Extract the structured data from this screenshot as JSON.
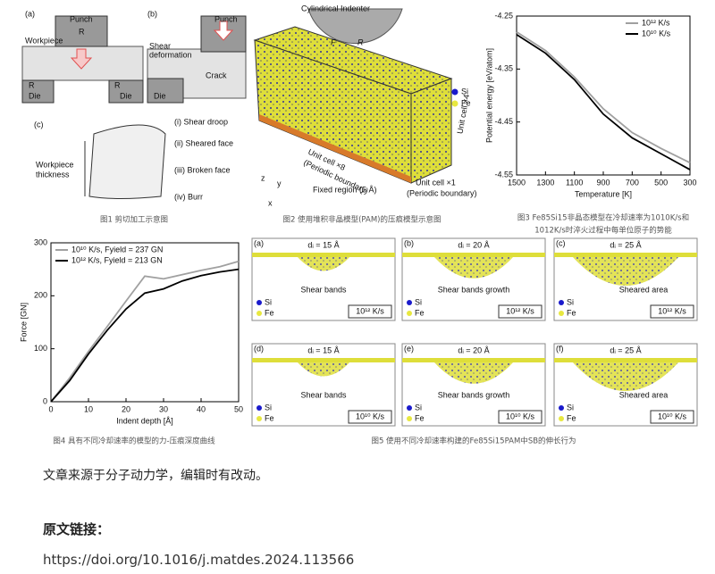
{
  "figure1": {
    "labels_a": [
      "(a)",
      "Punch",
      "R",
      "Workpiece",
      "R",
      "Die",
      "R",
      "Die"
    ],
    "labels_b": [
      "(b)",
      "Punch",
      "Shear",
      "deformation",
      "Crack",
      "Die"
    ],
    "labels_c": [
      "(c)",
      "(i) Shear droop",
      "(ii) Sheared face",
      "(iii) Broken face",
      "(iv) Burr",
      "Workpiece",
      "thickness"
    ],
    "caption": "图1 剪切加工示意图"
  },
  "figure2": {
    "labels": [
      "Cylindrical Indenter",
      "F",
      "R",
      "Si",
      "Fe",
      "Unit cell ×4",
      "Unit cell ×8",
      "(Periodic boundary)",
      "Unit cell ×1",
      "(Periodic boundary)",
      "Fixed region (5 Å)",
      "z",
      "y",
      "x"
    ],
    "caption": "图2 使用堆积非晶模型(PAM)的压痕模型示意图"
  },
  "figure3": {
    "chart": {
      "type": "line",
      "xlabel": "Temperature [K]",
      "ylabel": "Potential energy [eV/atom]",
      "x": [
        1500,
        1300,
        1100,
        900,
        700,
        500,
        300
      ],
      "xlim": [
        1500,
        300
      ],
      "xticks": [
        1500,
        1300,
        1100,
        900,
        700,
        500,
        300
      ],
      "ylim": [
        -4.55,
        -4.25
      ],
      "yticks": [
        -4.25,
        -4.35,
        -4.45,
        -4.55
      ],
      "series": [
        {
          "name": "10¹² K/s",
          "color": "#a0a0a0",
          "values": [
            -4.28,
            -4.315,
            -4.365,
            -4.425,
            -4.47,
            -4.5,
            -4.527
          ]
        },
        {
          "name": "10¹⁰ K/s",
          "color": "#000000",
          "values": [
            -4.285,
            -4.32,
            -4.37,
            -4.435,
            -4.48,
            -4.51,
            -4.54
          ]
        }
      ]
    },
    "caption": [
      "图3 Fe85Si15非晶态模型在冷却速率为1010K/s和",
      "1012K/s时淬火过程中每单位原子的势能"
    ]
  },
  "figure4": {
    "chart": {
      "type": "line",
      "xlabel": "Indent depth [Å]",
      "ylabel": "Force [GN]",
      "x": [
        0,
        5,
        10,
        15,
        20,
        25,
        30,
        35,
        40,
        45,
        50
      ],
      "xlim": [
        0,
        50
      ],
      "xticks": [
        0,
        10,
        20,
        30,
        40,
        50
      ],
      "ylim": [
        0,
        300
      ],
      "yticks": [
        0,
        100,
        200,
        300
      ],
      "series": [
        {
          "name": "10¹⁰ K/s, Fyield = 237 GN",
          "color": "#a0a0a0",
          "values": [
            0,
            45,
            95,
            142,
            190,
            237,
            232,
            240,
            248,
            255,
            265
          ]
        },
        {
          "name": "10¹² K/s, Fyield = 213 GN",
          "color": "#000000",
          "values": [
            0,
            40,
            90,
            135,
            175,
            205,
            213,
            228,
            238,
            245,
            250
          ]
        }
      ]
    },
    "caption": "图4 具有不同冷却速率的模型的力-压痕深度曲线"
  },
  "figure5": {
    "legend": [
      "Si",
      "Fe"
    ],
    "panels": [
      {
        "letter": "(a)",
        "depth": "dᵢ = 15 Å",
        "annotation": "Shear bands",
        "rate": "10¹² K/s"
      },
      {
        "letter": "(b)",
        "depth": "dᵢ = 20 Å",
        "annotation": "Shear bands growth",
        "rate": "10¹² K/s"
      },
      {
        "letter": "(c)",
        "depth": "dᵢ = 25 Å",
        "annotation": "Sheared area",
        "rate": "10¹² K/s"
      },
      {
        "letter": "(d)",
        "depth": "dᵢ = 15 Å",
        "annotation": "Shear bands",
        "rate": "10¹⁰ K/s"
      },
      {
        "letter": "(e)",
        "depth": "dᵢ = 20 Å",
        "annotation": "Shear bands growth",
        "rate": "10¹⁰ K/s"
      },
      {
        "letter": "(f)",
        "depth": "dᵢ = 25 Å",
        "annotation": "Sheared area",
        "rate": "10¹⁰ K/s"
      }
    ],
    "caption": "图5 使用不同冷却速率构建的Fe85Si15PAM中SB的伸长行为"
  },
  "body": {
    "source_note": "文章来源于分子动力学，编辑时有改动。",
    "link_heading": "原文链接：",
    "link": "https://doi.org/10.1016/j.matdes.2024.113566"
  }
}
